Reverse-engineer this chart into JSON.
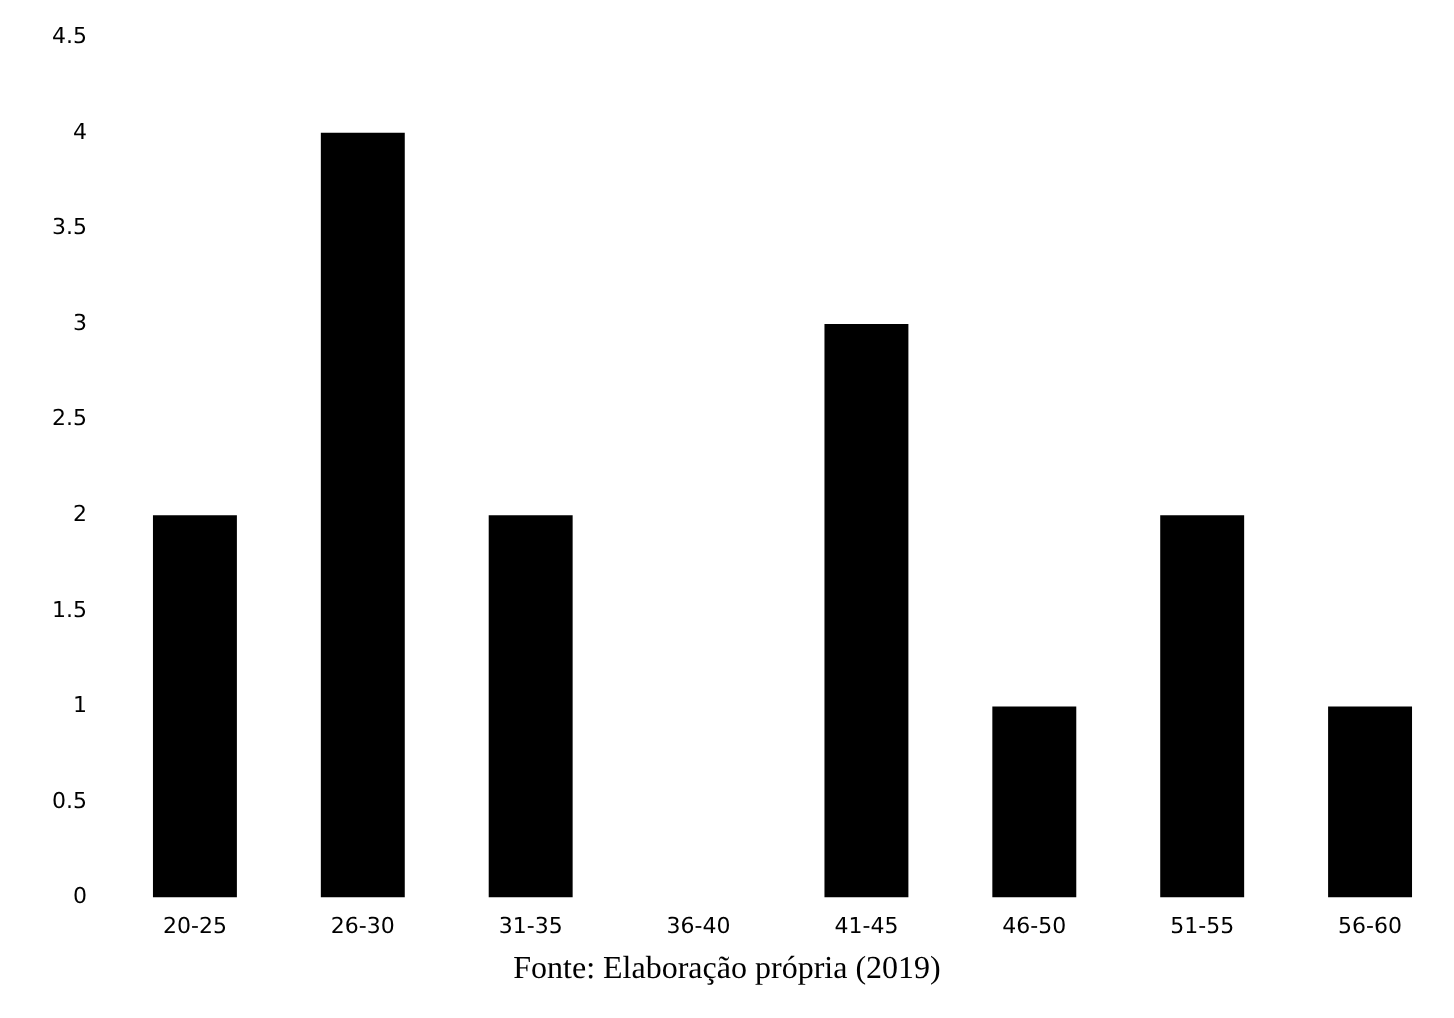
{
  "chart_data": {
    "type": "bar",
    "categories": [
      "20-25",
      "26-30",
      "31-35",
      "36-40",
      "41-45",
      "46-50",
      "51-55",
      "56-60"
    ],
    "values": [
      2,
      4,
      2,
      0,
      3,
      1,
      2,
      1
    ],
    "color": "#000000",
    "ylim": [
      0,
      4.5
    ],
    "yticks": [
      0,
      0.5,
      1,
      1.5,
      2,
      2.5,
      3,
      3.5,
      4,
      4.5
    ],
    "annotations": [
      "Fonte: Elaboração própria (2019)"
    ]
  }
}
